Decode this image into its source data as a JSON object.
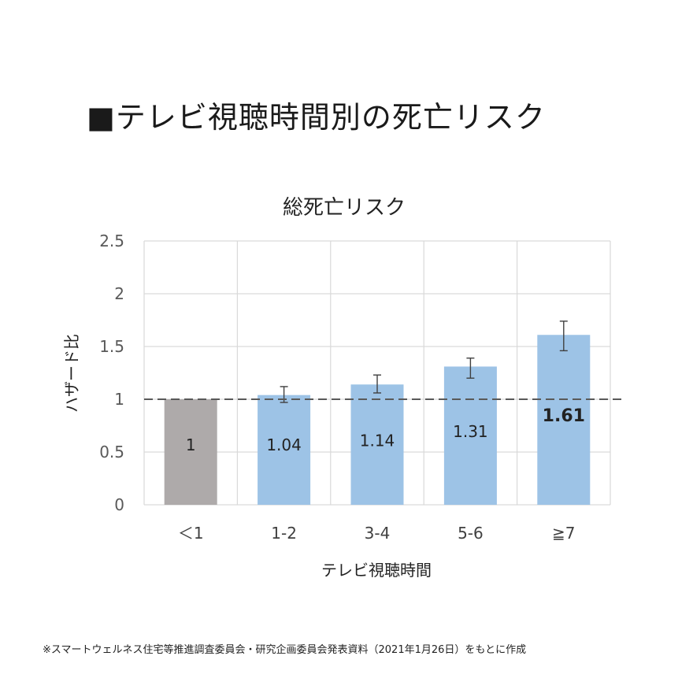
{
  "heading": "■テレビ視聴時間別の死亡リスク",
  "footnote": "※スマートウェルネス住宅等推進調査委員会・研究企画委員会発表資料（2021年1月26日）をもとに作成",
  "colors": {
    "reference_bar": "#aeaaaa",
    "bar": "#9dc3e6",
    "grid": "#d9d9d9",
    "dashed_line": "#595959",
    "error_bar": "#404040"
  },
  "chart_data": {
    "type": "bar",
    "title": "総死亡リスク",
    "xlabel": "テレビ視聴時間",
    "ylabel": "ハザード比",
    "categories": [
      "＜1",
      "1-2",
      "3-4",
      "5-6",
      "≧7"
    ],
    "values": [
      1,
      1.04,
      1.14,
      1.31,
      1.61
    ],
    "value_labels": [
      "1",
      "1.04",
      "1.14",
      "1.31",
      "1.61"
    ],
    "error_bars": [
      null,
      [
        0.97,
        1.12
      ],
      [
        1.06,
        1.23
      ],
      [
        1.2,
        1.39
      ],
      [
        1.46,
        1.74
      ]
    ],
    "reference_line": 1,
    "ylim": [
      0,
      2.5
    ],
    "yticks": [
      "0",
      "0.5",
      "1",
      "1.5",
      "2",
      "2.5"
    ],
    "ytick_values": [
      0,
      0.5,
      1,
      1.5,
      2,
      2.5
    ],
    "grid": true,
    "highlight_index": 4
  }
}
